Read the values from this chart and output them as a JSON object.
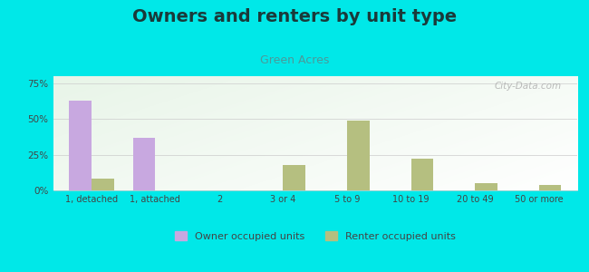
{
  "title": "Owners and renters by unit type",
  "subtitle": "Green Acres",
  "categories": [
    "1, detached",
    "1, attached",
    "2",
    "3 or 4",
    "5 to 9",
    "10 to 19",
    "20 to 49",
    "50 or more"
  ],
  "owner_values": [
    63,
    37,
    0,
    0,
    0,
    0,
    0,
    0
  ],
  "renter_values": [
    8,
    0,
    0,
    18,
    49,
    22,
    5,
    4
  ],
  "owner_color": "#c8a8e0",
  "renter_color": "#b5bf80",
  "ylim": [
    0,
    80
  ],
  "yticks": [
    0,
    25,
    50,
    75
  ],
  "ytick_labels": [
    "0%",
    "25%",
    "50%",
    "75%"
  ],
  "fig_background": "#00e8e8",
  "bar_width": 0.35,
  "legend_owner": "Owner occupied units",
  "legend_renter": "Renter occupied units",
  "title_fontsize": 14,
  "subtitle_fontsize": 9,
  "title_color": "#1a3a3a",
  "subtitle_color": "#4a9a9a",
  "watermark": "City-Data.com",
  "axis_text_color": "#444444"
}
